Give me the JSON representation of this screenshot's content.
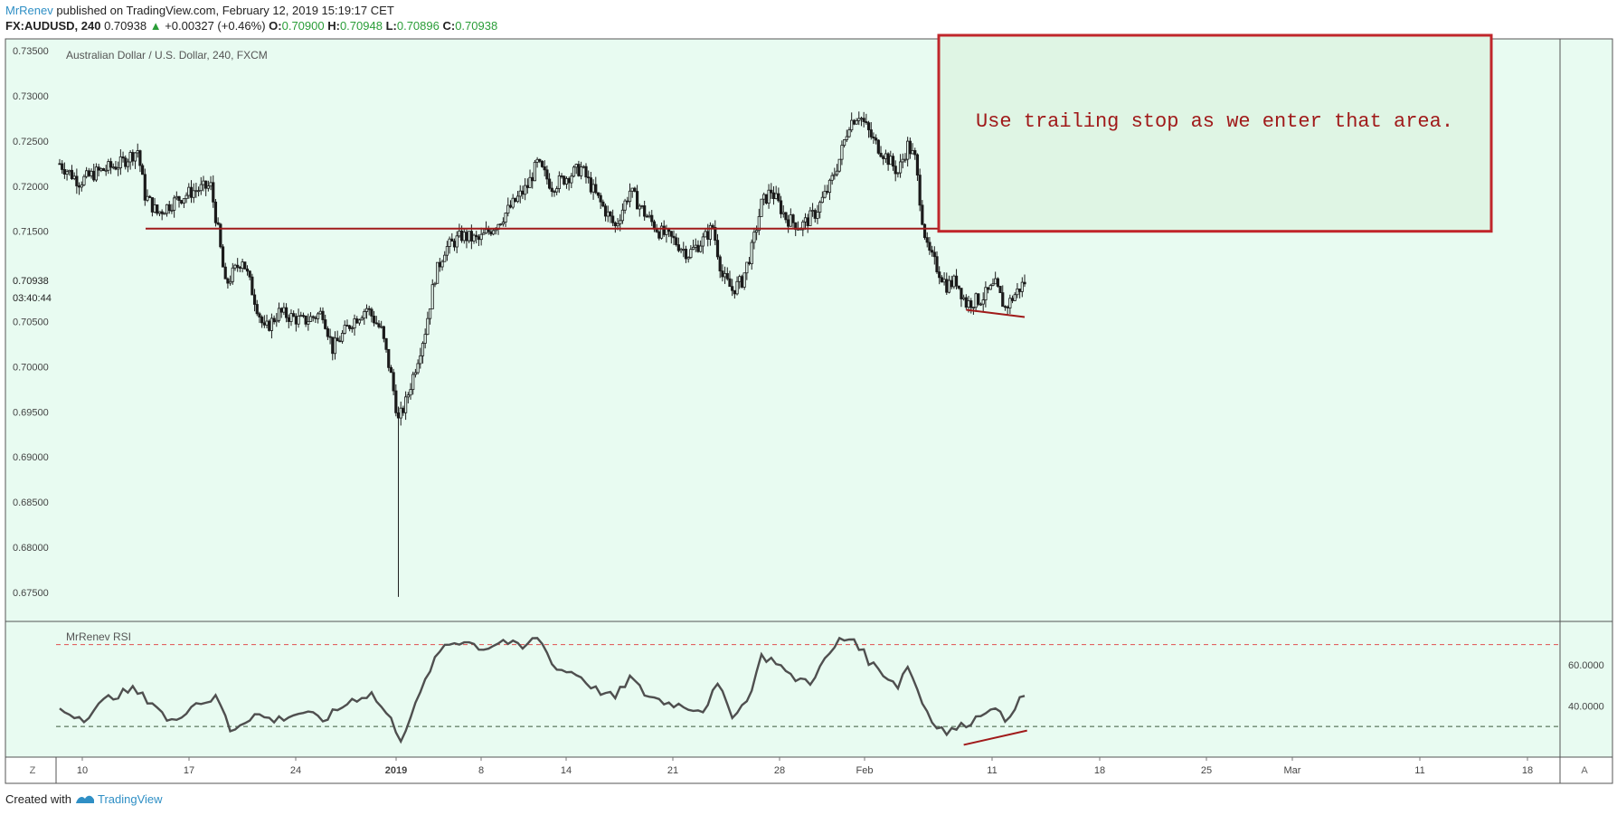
{
  "header": {
    "author": "MrRenev",
    "published_text": "published on TradingView.com, February 12, 2019 15:19:17 CET",
    "symbol": "FX:AUDUSD, 240",
    "last": "0.70938",
    "change_arrow": "▲",
    "change": "+0.00327 (+0.46%)",
    "o_label": "O:",
    "o_value": "0.70900",
    "h_label": "H:",
    "h_value": "0.70948",
    "l_label": "L:",
    "l_value": "0.70896",
    "c_label": "C:",
    "c_value": "0.70938"
  },
  "footer": {
    "created_with": "Created with",
    "brand": "TradingView"
  },
  "colors": {
    "panel_bg": "#e8fbf1",
    "candle": "#1b1b1b",
    "annotation_red": "#a01a1a",
    "rsi_line": "#4f4f4f",
    "overbought": "#e05050",
    "oversold": "#3c5a3c"
  },
  "chart_data": [
    {
      "type": "candlestick",
      "title": "Australian Dollar / U.S. Dollar, 240, FXCM",
      "y_ticks": [
        "0.73500",
        "0.73000",
        "0.72500",
        "0.72000",
        "0.71500",
        "0.70500",
        "0.70000",
        "0.69500",
        "0.69000",
        "0.68500",
        "0.68000",
        "0.67500"
      ],
      "ylim": [
        0.6725,
        0.7365
      ],
      "last_price_label": "0.70938",
      "countdown_label": "03:40:44",
      "x_ticks": [
        "10",
        "17",
        "24",
        "2019",
        "8",
        "14",
        "21",
        "28",
        "Feb",
        "11",
        "18",
        "25",
        "Mar",
        "11",
        "18"
      ],
      "bold_x_ticks": [
        "2019"
      ],
      "close_path": [
        {
          "bar": 0,
          "close": 0.7225
        },
        {
          "bar": 8,
          "close": 0.7205
        },
        {
          "bar": 15,
          "close": 0.7215
        },
        {
          "bar": 25,
          "close": 0.7225
        },
        {
          "bar": 32,
          "close": 0.724
        },
        {
          "bar": 35,
          "close": 0.719
        },
        {
          "bar": 40,
          "close": 0.717
        },
        {
          "bar": 48,
          "close": 0.7185
        },
        {
          "bar": 55,
          "close": 0.7195
        },
        {
          "bar": 62,
          "close": 0.72
        },
        {
          "bar": 65,
          "close": 0.715
        },
        {
          "bar": 68,
          "close": 0.709
        },
        {
          "bar": 75,
          "close": 0.712
        },
        {
          "bar": 80,
          "close": 0.7075
        },
        {
          "bar": 84,
          "close": 0.704
        },
        {
          "bar": 90,
          "close": 0.706
        },
        {
          "bar": 100,
          "close": 0.705
        },
        {
          "bar": 108,
          "close": 0.706
        },
        {
          "bar": 112,
          "close": 0.702
        },
        {
          "bar": 120,
          "close": 0.705
        },
        {
          "bar": 126,
          "close": 0.7065
        },
        {
          "bar": 132,
          "close": 0.704
        },
        {
          "bar": 136,
          "close": 0.699
        },
        {
          "bar": 139,
          "close": 0.694
        },
        {
          "bar": 142,
          "close": 0.696
        },
        {
          "bar": 146,
          "close": 0.7
        },
        {
          "bar": 150,
          "close": 0.704
        },
        {
          "bar": 154,
          "close": 0.71
        },
        {
          "bar": 158,
          "close": 0.713
        },
        {
          "bar": 165,
          "close": 0.7145
        },
        {
          "bar": 172,
          "close": 0.714
        },
        {
          "bar": 180,
          "close": 0.716
        },
        {
          "bar": 186,
          "close": 0.718
        },
        {
          "bar": 192,
          "close": 0.72
        },
        {
          "bar": 196,
          "close": 0.7225
        },
        {
          "bar": 202,
          "close": 0.72
        },
        {
          "bar": 208,
          "close": 0.721
        },
        {
          "bar": 214,
          "close": 0.722
        },
        {
          "bar": 220,
          "close": 0.719
        },
        {
          "bar": 228,
          "close": 0.7155
        },
        {
          "bar": 234,
          "close": 0.7195
        },
        {
          "bar": 240,
          "close": 0.717
        },
        {
          "bar": 246,
          "close": 0.715
        },
        {
          "bar": 252,
          "close": 0.714
        },
        {
          "bar": 258,
          "close": 0.7125
        },
        {
          "bar": 264,
          "close": 0.714
        },
        {
          "bar": 268,
          "close": 0.7155
        },
        {
          "bar": 272,
          "close": 0.71
        },
        {
          "bar": 276,
          "close": 0.7085
        },
        {
          "bar": 280,
          "close": 0.7095
        },
        {
          "bar": 284,
          "close": 0.713
        },
        {
          "bar": 288,
          "close": 0.718
        },
        {
          "bar": 292,
          "close": 0.7195
        },
        {
          "bar": 298,
          "close": 0.7165
        },
        {
          "bar": 304,
          "close": 0.7155
        },
        {
          "bar": 310,
          "close": 0.717
        },
        {
          "bar": 316,
          "close": 0.72
        },
        {
          "bar": 320,
          "close": 0.723
        },
        {
          "bar": 324,
          "close": 0.727
        },
        {
          "bar": 328,
          "close": 0.728
        },
        {
          "bar": 334,
          "close": 0.725
        },
        {
          "bar": 340,
          "close": 0.723
        },
        {
          "bar": 344,
          "close": 0.7215
        },
        {
          "bar": 348,
          "close": 0.7245
        },
        {
          "bar": 351,
          "close": 0.723
        },
        {
          "bar": 354,
          "close": 0.7165
        },
        {
          "bar": 356,
          "close": 0.713
        },
        {
          "bar": 360,
          "close": 0.711
        },
        {
          "bar": 364,
          "close": 0.709
        },
        {
          "bar": 368,
          "close": 0.7095
        },
        {
          "bar": 372,
          "close": 0.707
        },
        {
          "bar": 378,
          "close": 0.7075
        },
        {
          "bar": 384,
          "close": 0.709
        },
        {
          "bar": 388,
          "close": 0.7065
        },
        {
          "bar": 392,
          "close": 0.708
        },
        {
          "bar": 396,
          "close": 0.7094
        }
      ],
      "spikes": [
        {
          "bar": 139,
          "low": 0.6745
        }
      ],
      "annotations": {
        "support_level": 0.7153,
        "text": "Use trailing stop as we enter that area.",
        "box_bottom": 0.715,
        "trendline_start": {
          "bar": 372,
          "price": 0.7063
        },
        "trendline_end": {
          "bar": 396,
          "price": 0.7055
        }
      }
    },
    {
      "type": "line",
      "title": "MrRenev RSI",
      "y_ticks": [
        "60.0000",
        "40.0000"
      ],
      "ylim": [
        15,
        80
      ],
      "overbought": 70,
      "oversold": 30,
      "values": [
        {
          "bar": 0,
          "value": 38
        },
        {
          "bar": 10,
          "value": 34
        },
        {
          "bar": 20,
          "value": 44
        },
        {
          "bar": 30,
          "value": 48
        },
        {
          "bar": 40,
          "value": 40
        },
        {
          "bar": 45,
          "value": 31
        },
        {
          "bar": 55,
          "value": 41
        },
        {
          "bar": 65,
          "value": 44
        },
        {
          "bar": 70,
          "value": 28
        },
        {
          "bar": 80,
          "value": 36
        },
        {
          "bar": 88,
          "value": 33
        },
        {
          "bar": 100,
          "value": 37
        },
        {
          "bar": 108,
          "value": 33
        },
        {
          "bar": 120,
          "value": 43
        },
        {
          "bar": 128,
          "value": 46
        },
        {
          "bar": 136,
          "value": 33
        },
        {
          "bar": 140,
          "value": 24
        },
        {
          "bar": 146,
          "value": 40
        },
        {
          "bar": 152,
          "value": 58
        },
        {
          "bar": 158,
          "value": 70
        },
        {
          "bar": 166,
          "value": 72
        },
        {
          "bar": 174,
          "value": 68
        },
        {
          "bar": 182,
          "value": 72
        },
        {
          "bar": 190,
          "value": 68
        },
        {
          "bar": 196,
          "value": 74
        },
        {
          "bar": 204,
          "value": 58
        },
        {
          "bar": 212,
          "value": 56
        },
        {
          "bar": 220,
          "value": 48
        },
        {
          "bar": 228,
          "value": 44
        },
        {
          "bar": 234,
          "value": 54
        },
        {
          "bar": 240,
          "value": 46
        },
        {
          "bar": 248,
          "value": 42
        },
        {
          "bar": 256,
          "value": 40
        },
        {
          "bar": 264,
          "value": 38
        },
        {
          "bar": 270,
          "value": 50
        },
        {
          "bar": 276,
          "value": 36
        },
        {
          "bar": 282,
          "value": 42
        },
        {
          "bar": 288,
          "value": 64
        },
        {
          "bar": 294,
          "value": 62
        },
        {
          "bar": 300,
          "value": 54
        },
        {
          "bar": 308,
          "value": 52
        },
        {
          "bar": 314,
          "value": 62
        },
        {
          "bar": 320,
          "value": 72
        },
        {
          "bar": 326,
          "value": 73
        },
        {
          "bar": 332,
          "value": 62
        },
        {
          "bar": 338,
          "value": 56
        },
        {
          "bar": 344,
          "value": 50
        },
        {
          "bar": 348,
          "value": 60
        },
        {
          "bar": 354,
          "value": 42
        },
        {
          "bar": 358,
          "value": 33
        },
        {
          "bar": 364,
          "value": 27
        },
        {
          "bar": 370,
          "value": 30
        },
        {
          "bar": 376,
          "value": 34
        },
        {
          "bar": 382,
          "value": 40
        },
        {
          "bar": 388,
          "value": 33
        },
        {
          "bar": 392,
          "value": 40
        },
        {
          "bar": 396,
          "value": 45
        }
      ],
      "annotations": {
        "trendline_start": {
          "bar": 371,
          "value": 21
        },
        "trendline_end": {
          "bar": 397,
          "value": 28
        }
      }
    }
  ],
  "axis_buttons": {
    "left": "Z",
    "right": "A"
  }
}
